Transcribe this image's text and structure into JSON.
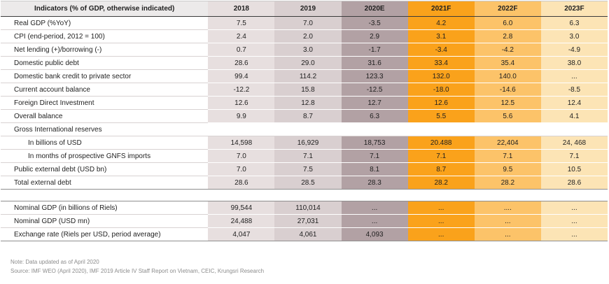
{
  "colors": {
    "label_header_bg": "#ECEAEA",
    "columns": [
      "#E7DFDF",
      "#D9CFD0",
      "#B2A1A4",
      "#FAA21B",
      "#FCC369",
      "#FCE4B5"
    ],
    "note_text": "#8C8C8C"
  },
  "main_table": {
    "header": {
      "label": "Indicators (% of GDP, otherwise indicated)",
      "years": [
        "2018",
        "2019",
        "2020E",
        "2021F",
        "2022F",
        "2023F"
      ]
    },
    "rows": [
      {
        "label": "Real GDP (%YoY)",
        "indent": 1,
        "values": [
          "7.5",
          "7.0",
          "-3.5",
          "4.2",
          "6.0",
          "6.3"
        ]
      },
      {
        "label": "CPI (end-period, 2012 = 100)",
        "indent": 1,
        "values": [
          "2.4",
          "2.0",
          "2.9",
          "3.1",
          "2.8",
          "3.0"
        ]
      },
      {
        "label": "Net lending (+)/borrowing (-)",
        "indent": 1,
        "values": [
          "0.7",
          "3.0",
          "-1.7",
          "-3.4",
          "-4.2",
          "-4.9"
        ]
      },
      {
        "label": "Domestic public debt",
        "indent": 1,
        "values": [
          "28.6",
          "29.0",
          "31.6",
          "33.4",
          "35.4",
          "38.0"
        ]
      },
      {
        "label": "Domestic bank credit to private sector",
        "indent": 1,
        "values": [
          "99.4",
          "114.2",
          "123.3",
          "132.0",
          "140.0",
          "..."
        ]
      },
      {
        "label": "Current account balance",
        "indent": 1,
        "values": [
          "-12.2",
          "15.8",
          "-12.5",
          "-18.0",
          "-14.6",
          "-8.5"
        ]
      },
      {
        "label": "Foreign Direct Investment",
        "indent": 1,
        "values": [
          "12.6",
          "12.8",
          "12.7",
          "12.6",
          "12.5",
          "12.4"
        ]
      },
      {
        "label": "Overall balance",
        "indent": 1,
        "values": [
          "9.9",
          "8.7",
          "6.3",
          "5.5",
          "5.6",
          "4.1"
        ]
      },
      {
        "label": "Gross International reserves",
        "indent": 1,
        "plain": true,
        "values": [
          "",
          "",
          "",
          "",
          "",
          ""
        ]
      },
      {
        "label": "In billions of USD",
        "indent": 2,
        "values": [
          "14,598",
          "16,929",
          "18,753",
          "20.488",
          "22,404",
          "24, 468"
        ]
      },
      {
        "label": "In months of prospective GNFS imports",
        "indent": 2,
        "values": [
          "7.0",
          "7.1",
          "7.1",
          "7.1",
          "7.1",
          "7.1"
        ]
      },
      {
        "label": "Public external debt (USD bn)",
        "indent": 1,
        "values": [
          "7.0",
          "7.5",
          "8.1",
          "8.7",
          "9.5",
          "10.5"
        ]
      },
      {
        "label": "Total external debt",
        "indent": 1,
        "values": [
          "28.6",
          "28.5",
          "28.3",
          "28.2",
          "28.2",
          "28.6"
        ]
      }
    ]
  },
  "secondary_table": {
    "rows": [
      {
        "label": "Nominal GDP (in billions of Riels)",
        "indent": 1,
        "values": [
          "99,544",
          "110,014",
          "...",
          "...",
          "....",
          "..."
        ]
      },
      {
        "label": "Nominal GDP (USD mn)",
        "indent": 1,
        "values": [
          "24,488",
          "27,031",
          "...",
          "...",
          "...",
          "..."
        ]
      },
      {
        "label": "Exchange rate (Riels per USD, period average)",
        "indent": 1,
        "values": [
          "4,047",
          "4,061",
          "4,093",
          "...",
          "...",
          "..."
        ]
      }
    ]
  },
  "notes": {
    "note": "Note: Data updated as of April 2020",
    "source": "Source: IMF WEO (April 2020), IMF 2019 Article IV Staff Report on Vietnam, CEIC, Krungsri Research"
  }
}
